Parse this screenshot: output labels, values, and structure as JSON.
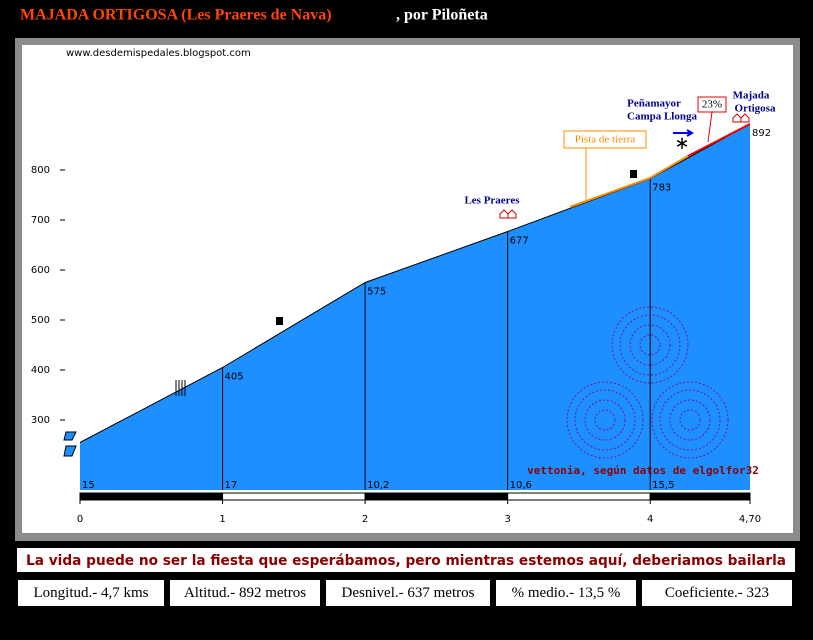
{
  "chart_data": {
    "type": "area",
    "title": "MAJADA ORTIGOSA (Les Praeres de Nava)",
    "subtitle": ", por Piloñeta",
    "x": [
      0,
      1,
      2,
      3,
      4,
      4.7
    ],
    "values": [
      255,
      405,
      575,
      677,
      783,
      892
    ],
    "color": "#1e8fff",
    "xlim": [
      0,
      4.7
    ],
    "xticks": [
      0,
      1,
      2,
      3,
      4,
      {
        "value": 4.7,
        "label": "4,70"
      }
    ],
    "ylim": [
      160,
      950
    ],
    "yticks": [
      300,
      400,
      500,
      600,
      700,
      800
    ],
    "gradients": [
      15,
      17,
      10.2,
      10.6,
      15.5
    ],
    "gradient_labels": [
      "15",
      "17",
      "10,2",
      "10,6",
      "15,5"
    ],
    "annotations": {
      "website": "www.desdemispedales.blogspot.com",
      "les_praeres": "Les Praeres",
      "penamayor": "Peñamayor",
      "campa": "Campa Llonga",
      "majada": "Majada",
      "ortigosa": "Ortigosa",
      "pista": "Pista de tierra",
      "max_slope": "23%",
      "credit": "vettonia, según datos de elgolfor32"
    }
  },
  "footer": {
    "motto": "La vida puede no ser la fiesta que esperábamos, pero mientras estemos aquí, deberiamos bailarla",
    "stats": [
      "Longitud.- 4,7 kms",
      "Altitud.- 892 metros",
      "Desnivel.- 637 metros",
      "% medio.- 13,5 %",
      "Coeficiente.- 323"
    ]
  }
}
